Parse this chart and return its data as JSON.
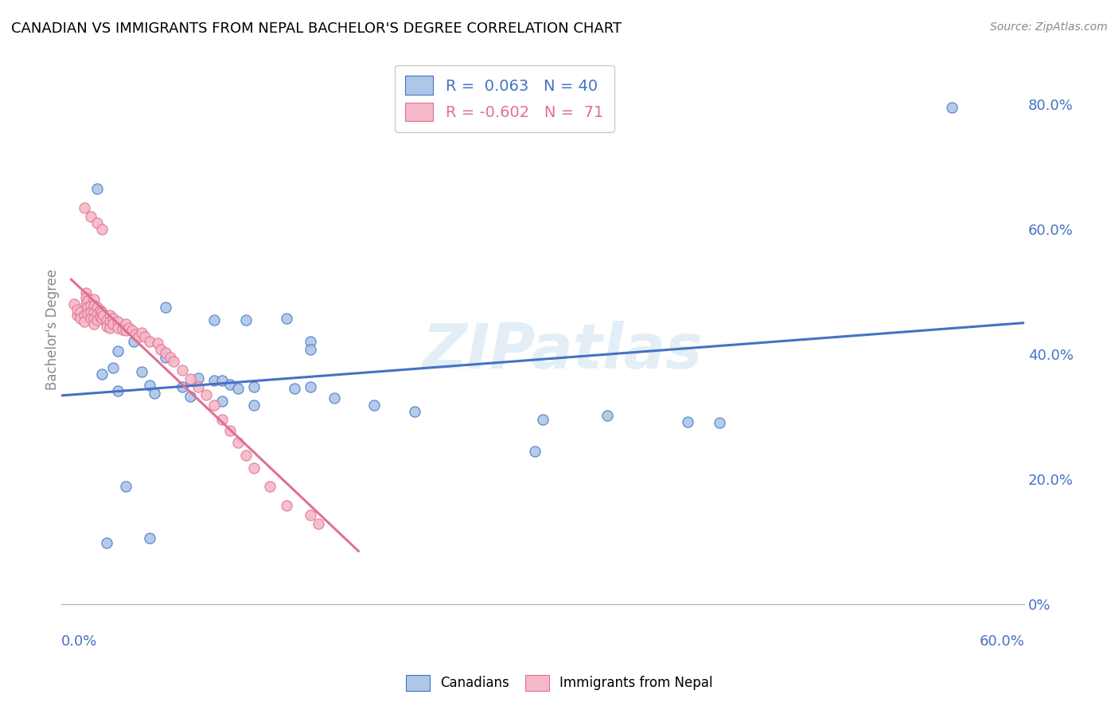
{
  "title": "CANADIAN VS IMMIGRANTS FROM NEPAL BACHELOR'S DEGREE CORRELATION CHART",
  "source": "Source: ZipAtlas.com",
  "ylabel": "Bachelor's Degree",
  "canadian_R": 0.063,
  "canadian_N": 40,
  "nepal_R": -0.602,
  "nepal_N": 71,
  "legend_label_1": "Canadians",
  "legend_label_2": "Immigrants from Nepal",
  "canadian_color": "#aec6e8",
  "canadian_line_color": "#4472c4",
  "nepal_color": "#f5b8c8",
  "nepal_line_color": "#e07090",
  "watermark": "ZIPatlas",
  "xlim": [
    0.0,
    0.6
  ],
  "ylim": [
    0.0,
    0.88
  ],
  "ylabel_right_vals": [
    0.0,
    0.2,
    0.4,
    0.6,
    0.8
  ],
  "canadians_x": [
    0.555,
    0.022,
    0.065,
    0.095,
    0.045,
    0.035,
    0.065,
    0.032,
    0.05,
    0.025,
    0.085,
    0.095,
    0.115,
    0.14,
    0.155,
    0.155,
    0.1,
    0.105,
    0.12,
    0.145,
    0.155,
    0.17,
    0.195,
    0.22,
    0.3,
    0.34,
    0.39,
    0.41,
    0.295,
    0.055,
    0.075,
    0.11,
    0.035,
    0.058,
    0.08,
    0.1,
    0.12,
    0.04,
    0.055,
    0.028
  ],
  "canadians_y": [
    0.795,
    0.665,
    0.475,
    0.455,
    0.42,
    0.405,
    0.395,
    0.378,
    0.372,
    0.368,
    0.362,
    0.358,
    0.455,
    0.458,
    0.42,
    0.408,
    0.358,
    0.352,
    0.348,
    0.345,
    0.348,
    0.33,
    0.318,
    0.308,
    0.295,
    0.302,
    0.292,
    0.29,
    0.245,
    0.35,
    0.348,
    0.345,
    0.342,
    0.338,
    0.332,
    0.325,
    0.318,
    0.188,
    0.105,
    0.098
  ],
  "nepal_x": [
    0.008,
    0.01,
    0.01,
    0.012,
    0.012,
    0.014,
    0.014,
    0.015,
    0.015,
    0.015,
    0.016,
    0.016,
    0.016,
    0.018,
    0.018,
    0.018,
    0.02,
    0.02,
    0.02,
    0.02,
    0.02,
    0.022,
    0.022,
    0.022,
    0.024,
    0.024,
    0.025,
    0.025,
    0.026,
    0.028,
    0.028,
    0.03,
    0.03,
    0.03,
    0.032,
    0.032,
    0.035,
    0.035,
    0.038,
    0.04,
    0.04,
    0.042,
    0.044,
    0.046,
    0.048,
    0.05,
    0.052,
    0.055,
    0.06,
    0.062,
    0.065,
    0.068,
    0.07,
    0.075,
    0.08,
    0.085,
    0.09,
    0.095,
    0.1,
    0.105,
    0.11,
    0.115,
    0.12,
    0.13,
    0.14,
    0.155,
    0.16,
    0.014,
    0.018,
    0.022,
    0.025
  ],
  "nepal_y": [
    0.48,
    0.462,
    0.472,
    0.468,
    0.458,
    0.462,
    0.452,
    0.498,
    0.49,
    0.48,
    0.485,
    0.475,
    0.465,
    0.478,
    0.468,
    0.458,
    0.488,
    0.478,
    0.468,
    0.458,
    0.448,
    0.475,
    0.465,
    0.455,
    0.47,
    0.46,
    0.468,
    0.458,
    0.462,
    0.455,
    0.445,
    0.462,
    0.452,
    0.442,
    0.458,
    0.448,
    0.452,
    0.442,
    0.44,
    0.448,
    0.438,
    0.442,
    0.438,
    0.432,
    0.428,
    0.435,
    0.428,
    0.42,
    0.418,
    0.408,
    0.402,
    0.395,
    0.388,
    0.375,
    0.36,
    0.348,
    0.335,
    0.318,
    0.295,
    0.278,
    0.258,
    0.238,
    0.218,
    0.188,
    0.158,
    0.142,
    0.128,
    0.635,
    0.62,
    0.61,
    0.6
  ],
  "nepal_line_x_start": 0.006,
  "nepal_line_x_end": 0.185,
  "canadian_line_x_start": 0.0,
  "canadian_line_x_end": 0.6
}
